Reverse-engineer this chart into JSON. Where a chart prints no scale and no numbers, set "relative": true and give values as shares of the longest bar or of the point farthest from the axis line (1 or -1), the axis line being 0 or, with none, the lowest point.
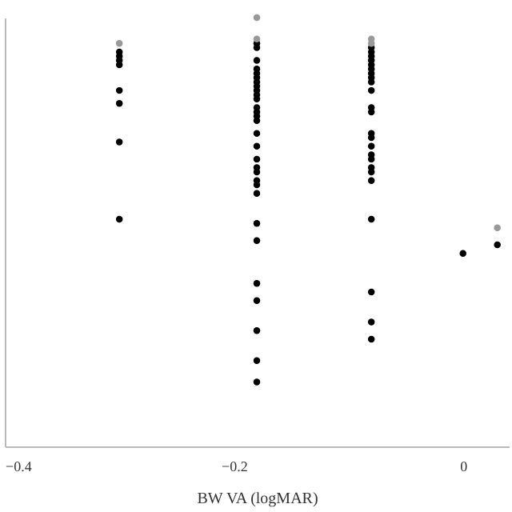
{
  "chart_data": {
    "type": "scatter",
    "xlabel": "BW VA (logMAR)",
    "relative": true,
    "marker": "circle",
    "grid": false,
    "xlim": [
      -0.4,
      0.04
    ],
    "xticks": [
      -0.4,
      -0.2,
      0
    ],
    "series": [
      {
        "color": "#000000",
        "x": [
          -0.3,
          -0.3,
          -0.3,
          -0.3,
          -0.3,
          -0.3,
          -0.3,
          -0.3,
          -0.18,
          -0.18,
          -0.18,
          -0.18,
          -0.18,
          -0.18,
          -0.18,
          -0.18,
          -0.18,
          -0.18,
          -0.18,
          -0.18,
          -0.18,
          -0.18,
          -0.18,
          -0.18,
          -0.18,
          -0.18,
          -0.18,
          -0.18,
          -0.18,
          -0.18,
          -0.18,
          -0.18,
          -0.18,
          -0.18,
          -0.18,
          -0.18,
          -0.18,
          -0.18,
          -0.08,
          -0.08,
          -0.08,
          -0.08,
          -0.08,
          -0.08,
          -0.08,
          -0.08,
          -0.08,
          -0.08,
          -0.08,
          -0.08,
          -0.08,
          -0.08,
          -0.08,
          -0.08,
          -0.08,
          -0.08,
          -0.08,
          -0.08,
          -0.08,
          -0.08,
          -0.08,
          -0.08,
          0,
          0.03
        ],
        "values": [
          0.92,
          0.91,
          0.9,
          0.89,
          0.83,
          0.8,
          0.71,
          0.53,
          0.94,
          0.93,
          0.9,
          0.88,
          0.87,
          0.86,
          0.85,
          0.84,
          0.83,
          0.82,
          0.81,
          0.79,
          0.78,
          0.77,
          0.76,
          0.73,
          0.7,
          0.67,
          0.65,
          0.64,
          0.62,
          0.61,
          0.59,
          0.52,
          0.48,
          0.38,
          0.34,
          0.27,
          0.2,
          0.15,
          0.93,
          0.92,
          0.91,
          0.9,
          0.89,
          0.88,
          0.87,
          0.86,
          0.85,
          0.83,
          0.79,
          0.78,
          0.73,
          0.72,
          0.7,
          0.68,
          0.67,
          0.65,
          0.64,
          0.62,
          0.53,
          0.36,
          0.29,
          0.25,
          0.45,
          0.47
        ]
      },
      {
        "color": "#999999",
        "x": [
          -0.3,
          -0.18,
          -0.18,
          -0.08,
          -0.08,
          0.03
        ],
        "values": [
          0.94,
          1.0,
          0.95,
          0.95,
          0.94,
          0.51
        ]
      }
    ]
  }
}
